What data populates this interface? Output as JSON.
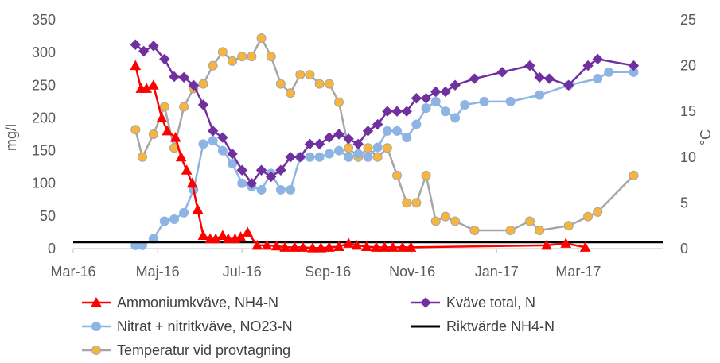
{
  "chart_data": {
    "type": "line",
    "title": "",
    "ylabel": "mg/l",
    "y2label": "°C",
    "xlim": [
      "2016-03-01",
      "2017-05-01"
    ],
    "ylim": [
      0,
      350
    ],
    "y2lim": [
      0,
      25
    ],
    "x_ticks": [
      "Mar-16",
      "Maj-16",
      "Jul-16",
      "Sep-16",
      "Nov-16",
      "Jan-17",
      "Mar-17"
    ],
    "x_tick_dates": [
      "2016-03-01",
      "2016-05-01",
      "2016-07-01",
      "2016-09-01",
      "2016-11-01",
      "2017-01-01",
      "2017-03-01"
    ],
    "y_ticks": [
      0,
      50,
      100,
      150,
      200,
      250,
      300,
      350
    ],
    "y2_ticks": [
      0,
      5,
      10,
      15,
      20,
      25
    ],
    "grid": false,
    "legend_position": "bottom",
    "series": [
      {
        "name": "Ammoniumkväve, NH4-N",
        "axis": "left",
        "color": "#ff0000",
        "marker": "triangle",
        "x": [
          "2016-04-15",
          "2016-04-19",
          "2016-04-23",
          "2016-04-28",
          "2016-05-04",
          "2016-05-08",
          "2016-05-14",
          "2016-05-18",
          "2016-05-22",
          "2016-05-26",
          "2016-05-30",
          "2016-06-03",
          "2016-06-08",
          "2016-06-12",
          "2016-06-17",
          "2016-06-21",
          "2016-06-26",
          "2016-06-30",
          "2016-07-05",
          "2016-07-12",
          "2016-07-19",
          "2016-07-26",
          "2016-08-01",
          "2016-08-08",
          "2016-08-14",
          "2016-08-21",
          "2016-08-27",
          "2016-09-02",
          "2016-09-09",
          "2016-09-16",
          "2016-09-22",
          "2016-09-29",
          "2016-10-06",
          "2016-10-12",
          "2016-10-18",
          "2016-10-25",
          "2016-10-31",
          "2017-02-06",
          "2017-02-20",
          "2017-03-06"
        ],
        "values": [
          280,
          245,
          245,
          250,
          200,
          180,
          170,
          140,
          120,
          100,
          60,
          20,
          15,
          15,
          20,
          15,
          15,
          18,
          25,
          5,
          5,
          4,
          2,
          2,
          2,
          1,
          1,
          2,
          3,
          8,
          5,
          3,
          2,
          2,
          2,
          2,
          2,
          5,
          8,
          2
        ]
      },
      {
        "name": "Kväve total,  N",
        "axis": "left",
        "color": "#7030a0",
        "marker": "diamond",
        "x": [
          "2016-04-15",
          "2016-04-21",
          "2016-04-28",
          "2016-05-06",
          "2016-05-13",
          "2016-05-20",
          "2016-05-27",
          "2016-06-03",
          "2016-06-10",
          "2016-06-17",
          "2016-06-24",
          "2016-07-01",
          "2016-07-08",
          "2016-07-15",
          "2016-07-22",
          "2016-07-29",
          "2016-08-05",
          "2016-08-12",
          "2016-08-19",
          "2016-08-26",
          "2016-09-02",
          "2016-09-09",
          "2016-09-16",
          "2016-09-23",
          "2016-09-30",
          "2016-10-07",
          "2016-10-14",
          "2016-10-21",
          "2016-10-28",
          "2016-11-04",
          "2016-11-11",
          "2016-11-18",
          "2016-11-25",
          "2016-12-02",
          "2016-12-16",
          "2017-01-05",
          "2017-01-25",
          "2017-02-01",
          "2017-02-08",
          "2017-02-22",
          "2017-03-08",
          "2017-03-15",
          "2017-04-10"
        ],
        "values": [
          312,
          302,
          310,
          290,
          263,
          262,
          250,
          220,
          180,
          170,
          145,
          120,
          100,
          120,
          110,
          120,
          140,
          140,
          160,
          160,
          170,
          175,
          168,
          160,
          180,
          190,
          210,
          210,
          210,
          230,
          230,
          240,
          240,
          250,
          260,
          270,
          280,
          262,
          260,
          250,
          280,
          290,
          280
        ]
      },
      {
        "name": "Nitrat + nitritkväve, NO23-N",
        "axis": "left",
        "color": "#8db4e2",
        "marker": "circle",
        "x": [
          "2016-04-15",
          "2016-04-20",
          "2016-04-28",
          "2016-05-06",
          "2016-05-13",
          "2016-05-20",
          "2016-05-27",
          "2016-06-03",
          "2016-06-10",
          "2016-06-17",
          "2016-06-24",
          "2016-07-01",
          "2016-07-08",
          "2016-07-15",
          "2016-07-22",
          "2016-07-29",
          "2016-08-05",
          "2016-08-12",
          "2016-08-19",
          "2016-08-26",
          "2016-09-02",
          "2016-09-09",
          "2016-09-16",
          "2016-09-23",
          "2016-09-30",
          "2016-10-07",
          "2016-10-14",
          "2016-10-21",
          "2016-10-28",
          "2016-11-04",
          "2016-11-11",
          "2016-11-18",
          "2016-11-25",
          "2016-12-02",
          "2016-12-09",
          "2016-12-23",
          "2017-01-11",
          "2017-02-01",
          "2017-02-22",
          "2017-03-15",
          "2017-03-23",
          "2017-04-10"
        ],
        "values": [
          5,
          5,
          15,
          42,
          45,
          55,
          90,
          160,
          165,
          150,
          130,
          100,
          95,
          90,
          115,
          90,
          90,
          140,
          140,
          140,
          145,
          150,
          140,
          145,
          140,
          155,
          180,
          180,
          170,
          190,
          215,
          225,
          210,
          200,
          220,
          225,
          225,
          235,
          250,
          260,
          270,
          270
        ]
      },
      {
        "name": "Riktvärde NH4-N",
        "axis": "left",
        "color": "#000000",
        "marker": "none",
        "x": [
          "2016-03-01",
          "2017-05-01"
        ],
        "values": [
          10,
          10
        ]
      },
      {
        "name": "Temperatur vid provtagning",
        "axis": "right",
        "color": "#a6a6a6",
        "marker": "circle",
        "marker_color": "#f5b53f",
        "x": [
          "2016-04-15",
          "2016-04-20",
          "2016-04-28",
          "2016-05-06",
          "2016-05-13",
          "2016-05-20",
          "2016-05-27",
          "2016-06-03",
          "2016-06-10",
          "2016-06-17",
          "2016-06-24",
          "2016-07-01",
          "2016-07-08",
          "2016-07-15",
          "2016-07-22",
          "2016-07-29",
          "2016-08-05",
          "2016-08-12",
          "2016-08-19",
          "2016-08-26",
          "2016-09-02",
          "2016-09-09",
          "2016-09-16",
          "2016-09-23",
          "2016-09-30",
          "2016-10-07",
          "2016-10-14",
          "2016-10-21",
          "2016-10-28",
          "2016-11-04",
          "2016-11-11",
          "2016-11-18",
          "2016-11-25",
          "2016-12-02",
          "2016-12-16",
          "2017-01-11",
          "2017-01-25",
          "2017-02-01",
          "2017-02-22",
          "2017-03-08",
          "2017-03-15",
          "2017-04-10"
        ],
        "values": [
          13,
          10,
          12.5,
          15.5,
          11,
          15.5,
          17.5,
          18,
          20,
          21.5,
          20.5,
          21,
          21,
          23,
          21,
          18,
          17,
          19,
          19,
          18,
          18,
          16,
          11,
          10,
          11,
          10,
          11,
          8,
          5,
          5,
          8,
          3,
          3.5,
          3,
          2,
          2,
          3,
          2,
          2.5,
          3.5,
          4,
          8
        ]
      }
    ]
  }
}
